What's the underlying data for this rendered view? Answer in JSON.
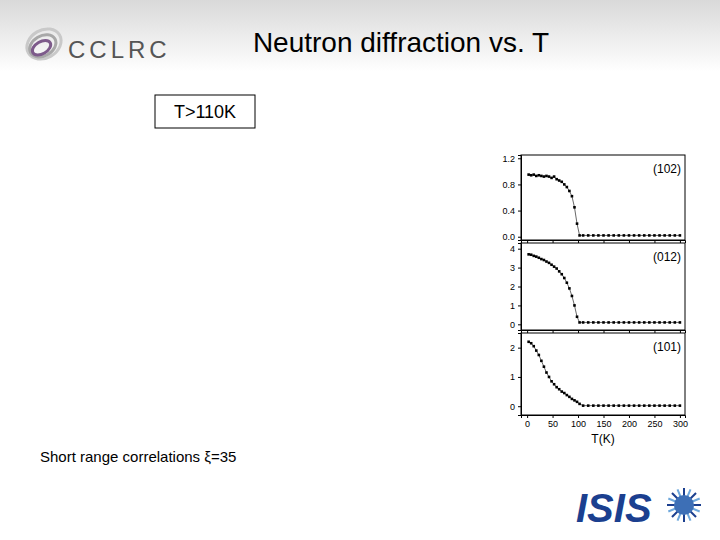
{
  "slide": {
    "title": "Neutron diffraction vs. T",
    "box_label": "T>110K",
    "caption": "Short range correlations ξ=35",
    "logo_left": "CCLRC",
    "logo_right": "ISIS"
  },
  "chart_data": [
    {
      "type": "scatter",
      "annotation": "(102)",
      "color": "#000000",
      "marker": "square",
      "line_style": "solid",
      "tick_labels": "y",
      "xlim": [
        -12,
        310
      ],
      "xticks": [
        0,
        50,
        100,
        150,
        200,
        250,
        300
      ],
      "ylim": [
        -0.05,
        1.25
      ],
      "yticks": [
        {
          "value": 0,
          "label": "0.0"
        },
        0.4,
        0.8,
        1.2
      ],
      "x": [
        3,
        8,
        13,
        18,
        23,
        28,
        33,
        38,
        43,
        48,
        53,
        58,
        63,
        68,
        73,
        78,
        83,
        88,
        93,
        98,
        103,
        110,
        120,
        130,
        140,
        150,
        160,
        170,
        180,
        190,
        200,
        210,
        220,
        230,
        240,
        250,
        260,
        270,
        280,
        290,
        300
      ],
      "values": [
        0.95,
        0.94,
        0.95,
        0.93,
        0.94,
        0.93,
        0.92,
        0.93,
        0.92,
        0.9,
        0.92,
        0.88,
        0.86,
        0.84,
        0.8,
        0.76,
        0.7,
        0.62,
        0.45,
        0.2,
        0.02,
        0.02,
        0.02,
        0.02,
        0.02,
        0.02,
        0.02,
        0.02,
        0.02,
        0.02,
        0.02,
        0.02,
        0.02,
        0.02,
        0.02,
        0.02,
        0.02,
        0.02,
        0.02,
        0.02,
        0.02
      ]
    },
    {
      "type": "scatter",
      "annotation": "(012)",
      "color": "#000000",
      "marker": "square",
      "line_style": "solid",
      "tick_labels": "y",
      "xlim": [
        -12,
        310
      ],
      "xticks": [
        0,
        50,
        100,
        150,
        200,
        250,
        300
      ],
      "ylim": [
        -0.3,
        4.3
      ],
      "yticks": [
        0,
        1,
        2,
        3,
        4
      ],
      "x": [
        3,
        8,
        13,
        18,
        23,
        28,
        33,
        38,
        43,
        48,
        53,
        58,
        63,
        68,
        73,
        78,
        83,
        88,
        93,
        98,
        103,
        110,
        120,
        130,
        140,
        150,
        160,
        170,
        180,
        190,
        200,
        210,
        220,
        230,
        240,
        250,
        260,
        270,
        280,
        290,
        300
      ],
      "values": [
        3.7,
        3.68,
        3.62,
        3.58,
        3.52,
        3.45,
        3.4,
        3.32,
        3.25,
        3.15,
        3.05,
        2.95,
        2.8,
        2.65,
        2.45,
        2.2,
        1.9,
        1.5,
        1.0,
        0.4,
        0.1,
        0.1,
        0.1,
        0.1,
        0.1,
        0.1,
        0.1,
        0.1,
        0.1,
        0.1,
        0.1,
        0.1,
        0.1,
        0.1,
        0.1,
        0.1,
        0.1,
        0.1,
        0.1,
        0.1,
        0.1
      ]
    },
    {
      "type": "scatter",
      "annotation": "(101)",
      "color": "#000000",
      "marker": "square",
      "line_style": "solid",
      "xlabel": "T(K)",
      "xlim": [
        -12,
        310
      ],
      "xticks": [
        0,
        50,
        100,
        150,
        200,
        250,
        300
      ],
      "ylim": [
        -0.3,
        2.5
      ],
      "yticks": [
        0,
        1,
        2
      ],
      "x": [
        3,
        8,
        13,
        18,
        23,
        28,
        33,
        38,
        43,
        48,
        53,
        58,
        63,
        68,
        73,
        78,
        83,
        88,
        93,
        98,
        103,
        110,
        120,
        130,
        140,
        150,
        160,
        170,
        180,
        190,
        200,
        210,
        220,
        230,
        240,
        250,
        260,
        270,
        280,
        290,
        300
      ],
      "values": [
        2.2,
        2.15,
        2.05,
        1.9,
        1.75,
        1.55,
        1.35,
        1.15,
        1.0,
        0.85,
        0.75,
        0.65,
        0.58,
        0.5,
        0.45,
        0.38,
        0.32,
        0.25,
        0.2,
        0.15,
        0.08,
        0.02,
        0.02,
        0.02,
        0.02,
        0.02,
        0.02,
        0.02,
        0.02,
        0.02,
        0.02,
        0.02,
        0.02,
        0.02,
        0.02,
        0.02,
        0.02,
        0.02,
        0.02,
        0.02,
        0.02
      ]
    }
  ]
}
